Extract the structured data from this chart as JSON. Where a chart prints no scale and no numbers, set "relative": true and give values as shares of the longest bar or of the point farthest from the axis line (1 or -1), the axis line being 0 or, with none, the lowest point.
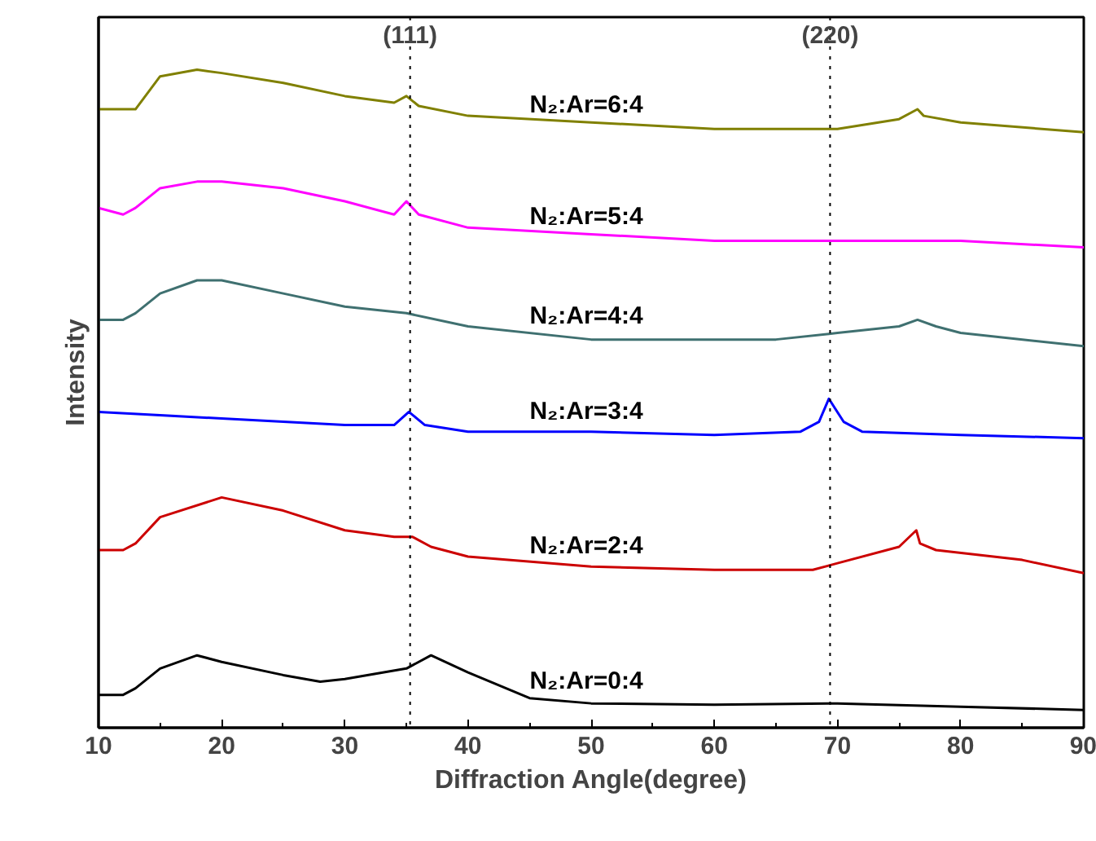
{
  "chart_data": {
    "type": "line",
    "relative": true,
    "xlabel": "Diffraction Angle(degree)",
    "ylabel": "Intensity",
    "xlim": [
      10,
      90
    ],
    "xticks": [
      10,
      20,
      30,
      40,
      50,
      60,
      70,
      80,
      90
    ],
    "tick_labels": "x",
    "grid": false,
    "marker": "none",
    "line_style": "solid",
    "ref_lines": [
      {
        "axis": "x",
        "value": 35.3,
        "color": "#000000",
        "line_style": "dotted"
      },
      {
        "axis": "x",
        "value": 69.4,
        "color": "#000000",
        "line_style": "dotted"
      }
    ],
    "annotations": [
      {
        "text": "(111)",
        "x": 35.3,
        "y": 1.03
      },
      {
        "text": "(220)",
        "x": 69.4,
        "y": 1.03
      }
    ],
    "series": [
      {
        "name": "N₂:Ar=6:4",
        "color": "#808000",
        "x": [
          10,
          12,
          13,
          15,
          18,
          20,
          25,
          30,
          34,
          35,
          36,
          40,
          50,
          60,
          70,
          75,
          76.5,
          77,
          80,
          90
        ],
        "values": [
          0.94,
          0.94,
          0.94,
          0.99,
          1.0,
          0.995,
          0.98,
          0.96,
          0.95,
          0.96,
          0.945,
          0.93,
          0.92,
          0.91,
          0.91,
          0.925,
          0.94,
          0.93,
          0.92,
          0.905
        ]
      },
      {
        "name": "N₂:Ar=5:4",
        "color": "#ff00ff",
        "x": [
          10,
          12,
          13,
          15,
          18,
          20,
          25,
          30,
          34,
          35,
          36,
          40,
          50,
          60,
          70,
          80,
          90
        ],
        "values": [
          0.79,
          0.78,
          0.79,
          0.82,
          0.83,
          0.83,
          0.82,
          0.8,
          0.78,
          0.8,
          0.78,
          0.76,
          0.75,
          0.74,
          0.74,
          0.74,
          0.73
        ]
      },
      {
        "name": "N₂:Ar=4:4",
        "color": "#3f7070",
        "x": [
          10,
          12,
          13,
          15,
          18,
          20,
          25,
          30,
          35,
          40,
          50,
          60,
          65,
          70,
          75,
          76.5,
          78,
          80,
          90
        ],
        "values": [
          0.62,
          0.62,
          0.63,
          0.66,
          0.68,
          0.68,
          0.66,
          0.64,
          0.63,
          0.61,
          0.59,
          0.59,
          0.59,
          0.6,
          0.61,
          0.62,
          0.61,
          0.6,
          0.58
        ]
      },
      {
        "name": "N₂:Ar=3:4",
        "color": "#0000ff",
        "x": [
          10,
          20,
          30,
          34,
          35.2,
          36.5,
          40,
          50,
          60,
          67,
          68.5,
          69.3,
          70.5,
          72,
          80,
          90
        ],
        "values": [
          0.48,
          0.47,
          0.46,
          0.46,
          0.48,
          0.46,
          0.45,
          0.45,
          0.445,
          0.45,
          0.465,
          0.5,
          0.465,
          0.45,
          0.445,
          0.44
        ]
      },
      {
        "name": "N₂:Ar=2:4",
        "color": "#cc0000",
        "x": [
          10,
          12,
          13,
          15,
          20,
          25,
          30,
          34,
          35.5,
          37,
          40,
          50,
          60,
          68,
          70,
          75,
          76.4,
          76.7,
          78,
          85,
          90
        ],
        "values": [
          0.27,
          0.27,
          0.28,
          0.32,
          0.35,
          0.33,
          0.3,
          0.29,
          0.29,
          0.275,
          0.26,
          0.245,
          0.24,
          0.24,
          0.25,
          0.275,
          0.3,
          0.28,
          0.27,
          0.255,
          0.235
        ]
      },
      {
        "name": "N₂:Ar=0:4",
        "color": "#000000",
        "x": [
          10,
          12,
          13,
          15,
          18,
          20,
          25,
          28,
          30,
          35,
          37,
          40,
          45,
          50,
          60,
          70,
          80,
          90
        ],
        "values": [
          0.05,
          0.05,
          0.06,
          0.09,
          0.11,
          0.1,
          0.08,
          0.07,
          0.074,
          0.09,
          0.11,
          0.084,
          0.045,
          0.037,
          0.035,
          0.037,
          0.032,
          0.027
        ]
      }
    ]
  }
}
